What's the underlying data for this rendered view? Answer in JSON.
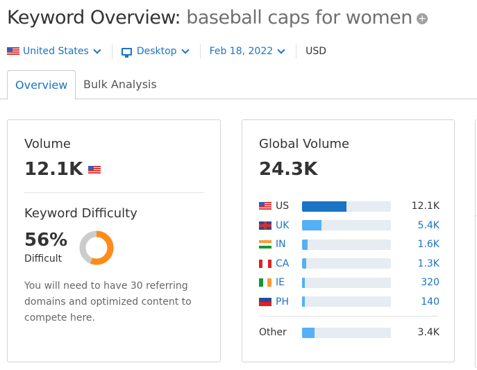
{
  "header": {
    "title": "Keyword Overview:",
    "keyword": "baseball caps for women",
    "add_icon": "plus-circle-icon"
  },
  "filters": {
    "country": "United States",
    "device": "Desktop",
    "date": "Feb 18, 2022",
    "currency": "USD"
  },
  "tabs": [
    {
      "label": "Overview",
      "active": true
    },
    {
      "label": "Bulk Analysis",
      "active": false
    }
  ],
  "volume_card": {
    "title": "Volume",
    "value": "12.1K",
    "flag": "US",
    "kd_title": "Keyword Difficulty",
    "kd_value": "56%",
    "kd_percent": 56,
    "kd_label": "Difficult",
    "kd_color": "#ff8c1a",
    "description": "You will need to have 30 referring domains and optimized content to compete here."
  },
  "global_card": {
    "title": "Global Volume",
    "value": "24.3K",
    "rows": [
      {
        "code": "US",
        "value": "12.1K",
        "share": 50,
        "flag": "us"
      },
      {
        "code": "UK",
        "value": "5.4K",
        "share": 22,
        "flag": "uk"
      },
      {
        "code": "IN",
        "value": "1.6K",
        "share": 6,
        "flag": "in"
      },
      {
        "code": "CA",
        "value": "1.3K",
        "share": 5,
        "flag": "ca"
      },
      {
        "code": "IE",
        "value": "320",
        "share": 3,
        "flag": "ie"
      },
      {
        "code": "PH",
        "value": "140",
        "share": 3,
        "flag": "ph"
      }
    ],
    "other": {
      "label": "Other",
      "value": "3.4K",
      "share": 14
    }
  },
  "colors": {
    "accent": "#1a74c4",
    "bar_primary": "#1a74c4",
    "bar": "#55b0f5",
    "track": "#e6ecf2"
  }
}
